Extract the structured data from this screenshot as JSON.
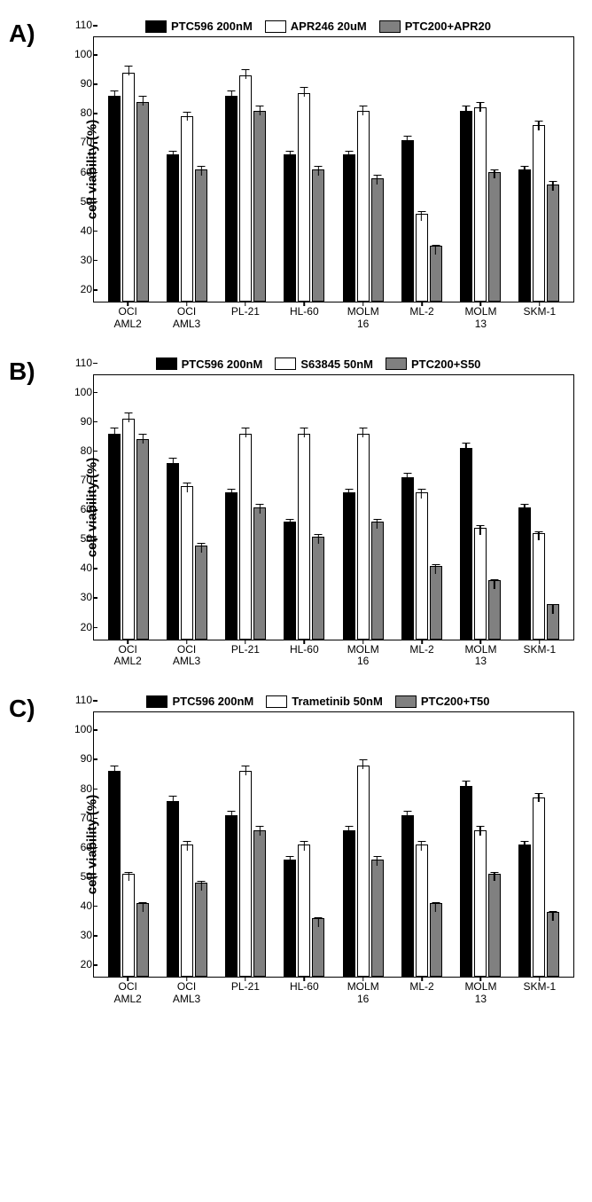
{
  "panels": [
    {
      "label": "A)",
      "y_label": "cell viability (%)",
      "y_min": 20,
      "y_max": 110,
      "y_tick_step": 10,
      "legend": [
        {
          "text": "PTC596 200nM",
          "color": "#000000"
        },
        {
          "text": "APR246 20uM",
          "color": "#ffffff"
        },
        {
          "text": "PTC200+APR20",
          "color": "#808080"
        }
      ],
      "categories": [
        {
          "lines": [
            "OCI",
            "AML2"
          ]
        },
        {
          "lines": [
            "OCI",
            "AML3"
          ]
        },
        {
          "lines": [
            "PL-21"
          ]
        },
        {
          "lines": [
            "HL-60"
          ]
        },
        {
          "lines": [
            "MOLM",
            "16"
          ]
        },
        {
          "lines": [
            "ML-2"
          ]
        },
        {
          "lines": [
            "MOLM",
            "13"
          ]
        },
        {
          "lines": [
            "SKM-1"
          ]
        }
      ],
      "series": [
        {
          "color": "#000000",
          "values": [
            90,
            70,
            90,
            70,
            70,
            75,
            85,
            65
          ],
          "err": [
            3,
            3,
            3,
            3,
            3,
            3,
            3,
            3
          ]
        },
        {
          "color": "#ffffff",
          "values": [
            98,
            83,
            97,
            91,
            85,
            50,
            86,
            80
          ],
          "err": [
            3,
            3,
            3,
            3,
            3,
            3,
            3,
            3
          ]
        },
        {
          "color": "#808080",
          "values": [
            88,
            65,
            85,
            65,
            62,
            39,
            64,
            60
          ],
          "err": [
            3,
            3,
            3,
            3,
            3,
            3,
            3,
            3
          ]
        }
      ]
    },
    {
      "label": "B)",
      "y_label": "cell viability (%)",
      "y_min": 20,
      "y_max": 110,
      "y_tick_step": 10,
      "legend": [
        {
          "text": "PTC596 200nM",
          "color": "#000000"
        },
        {
          "text": "S63845 50nM",
          "color": "#ffffff"
        },
        {
          "text": "PTC200+S50",
          "color": "#808080"
        }
      ],
      "categories": [
        {
          "lines": [
            "OCI",
            "AML2"
          ]
        },
        {
          "lines": [
            "OCI",
            "AML3"
          ]
        },
        {
          "lines": [
            "PL-21"
          ]
        },
        {
          "lines": [
            "HL-60"
          ]
        },
        {
          "lines": [
            "MOLM",
            "16"
          ]
        },
        {
          "lines": [
            "ML-2"
          ]
        },
        {
          "lines": [
            "MOLM",
            "13"
          ]
        },
        {
          "lines": [
            "SKM-1"
          ]
        }
      ],
      "series": [
        {
          "color": "#000000",
          "values": [
            90,
            80,
            70,
            60,
            70,
            75,
            85,
            65
          ],
          "err": [
            3,
            3,
            3,
            3,
            3,
            3,
            3,
            3
          ]
        },
        {
          "color": "#ffffff",
          "values": [
            95,
            72,
            90,
            90,
            90,
            70,
            58,
            56
          ],
          "err": [
            3,
            3,
            3,
            3,
            3,
            3,
            3,
            3
          ]
        },
        {
          "color": "#808080",
          "values": [
            88,
            52,
            65,
            55,
            60,
            45,
            40,
            32
          ],
          "err": [
            3,
            3,
            3,
            3,
            3,
            3,
            3,
            3
          ]
        }
      ]
    },
    {
      "label": "C)",
      "y_label": "cell viability (%)",
      "y_min": 20,
      "y_max": 110,
      "y_tick_step": 10,
      "legend": [
        {
          "text": "PTC596 200nM",
          "color": "#000000"
        },
        {
          "text": "Trametinib 50nM",
          "color": "#ffffff"
        },
        {
          "text": "PTC200+T50",
          "color": "#808080"
        }
      ],
      "categories": [
        {
          "lines": [
            "OCI",
            "AML2"
          ]
        },
        {
          "lines": [
            "OCI",
            "AML3"
          ]
        },
        {
          "lines": [
            "PL-21"
          ]
        },
        {
          "lines": [
            "HL-60"
          ]
        },
        {
          "lines": [
            "MOLM",
            "16"
          ]
        },
        {
          "lines": [
            "ML-2"
          ]
        },
        {
          "lines": [
            "MOLM",
            "13"
          ]
        },
        {
          "lines": [
            "SKM-1"
          ]
        }
      ],
      "series": [
        {
          "color": "#000000",
          "values": [
            90,
            80,
            75,
            60,
            70,
            75,
            85,
            65
          ],
          "err": [
            3,
            3,
            3,
            3,
            3,
            3,
            3,
            3
          ]
        },
        {
          "color": "#ffffff",
          "values": [
            55,
            65,
            90,
            65,
            92,
            65,
            70,
            81
          ],
          "err": [
            3,
            3,
            3,
            3,
            3,
            3,
            3,
            3
          ]
        },
        {
          "color": "#808080",
          "values": [
            45,
            52,
            70,
            40,
            60,
            45,
            55,
            42
          ],
          "err": [
            3,
            3,
            3,
            3,
            3,
            3,
            3,
            3
          ]
        }
      ]
    }
  ]
}
